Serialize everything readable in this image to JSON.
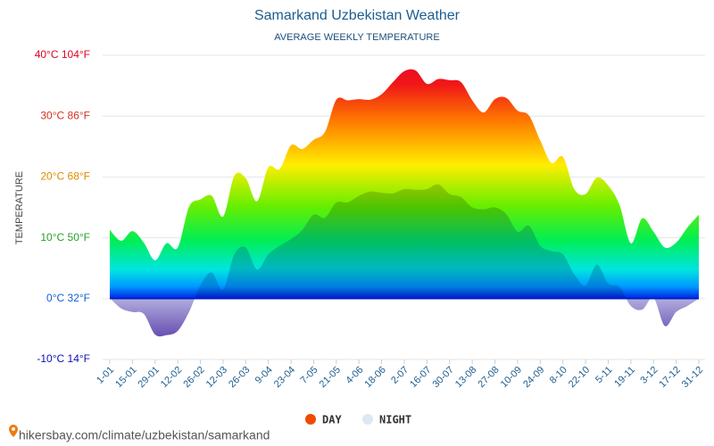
{
  "chart_data": {
    "type": "area",
    "title": "Samarkand Uzbekistan Weather",
    "subtitle": "AVERAGE WEEKLY TEMPERATURE",
    "y_label": "TEMPERATURE",
    "categories": [
      "1-01",
      null,
      "15-01",
      null,
      "29-01",
      null,
      "12-02",
      null,
      "26-02",
      null,
      "12-03",
      null,
      "26-03",
      null,
      "9-04",
      null,
      "23-04",
      null,
      "7-05",
      null,
      "21-05",
      null,
      "4-06",
      null,
      "18-06",
      null,
      "2-07",
      null,
      "16-07",
      null,
      "30-07",
      null,
      "13-08",
      null,
      "27-08",
      null,
      "10-09",
      null,
      "24-09",
      null,
      "8-10",
      null,
      "22-10",
      null,
      "5-11",
      null,
      "19-11",
      null,
      "3-12",
      null,
      "17-12",
      null,
      "31-12"
    ],
    "series": [
      {
        "name": "DAY",
        "color": "#f04a00",
        "values": [
          11.3,
          9.5,
          11.1,
          9.2,
          6.3,
          9.1,
          8.4,
          15.1,
          16.3,
          16.9,
          13.5,
          20.2,
          19.8,
          16.0,
          21.6,
          21.3,
          25.2,
          24.6,
          26.1,
          27.4,
          32.7,
          32.6,
          32.8,
          32.7,
          33.6,
          35.6,
          37.4,
          37.5,
          35.3,
          36.1,
          35.9,
          35.6,
          32.6,
          30.6,
          32.8,
          33.0,
          30.9,
          30.1,
          26.0,
          22.3,
          23.3,
          18.0,
          17.2,
          19.9,
          18.6,
          15.4,
          9.1,
          13.2,
          11.0,
          8.4,
          9.2,
          11.7,
          13.8
        ]
      },
      {
        "name": "NIGHT",
        "color": "#dde8f5",
        "values": [
          0.1,
          -1.6,
          -2.2,
          -2.5,
          -5.9,
          -6.0,
          -5.3,
          -2.2,
          2.2,
          4.3,
          1.5,
          7.3,
          8.4,
          4.8,
          7.3,
          8.7,
          9.8,
          11.3,
          13.8,
          13.3,
          15.8,
          15.8,
          16.9,
          17.6,
          17.4,
          17.3,
          18.0,
          17.9,
          18.0,
          18.8,
          17.2,
          16.7,
          15.0,
          14.7,
          15.0,
          13.9,
          11.0,
          12.0,
          8.7,
          7.8,
          7.3,
          4.0,
          2.2,
          5.6,
          2.5,
          1.9,
          -1.2,
          -1.8,
          0.1,
          -4.5,
          -2.2,
          -1.2,
          0
        ]
      }
    ],
    "ylim": [
      -10,
      40
    ],
    "yticks": [
      {
        "value": -10,
        "label": "-10°C 14°F"
      },
      {
        "value": 0,
        "label": "0°C 32°F"
      },
      {
        "value": 10,
        "label": "10°C 50°F"
      },
      {
        "value": 20,
        "label": "20°C 68°F"
      },
      {
        "value": 30,
        "label": "30°C 86°F"
      },
      {
        "value": 40,
        "label": "40°C 104°F"
      }
    ],
    "ytick_colors": [
      "#1010b0",
      "#1060d0",
      "#28a028",
      "#e08a00",
      "#d83020",
      "#e00020"
    ],
    "grid": true,
    "legend": "bottom",
    "source": "hikersbay.com/climate/uzbekistan/samarkand"
  }
}
